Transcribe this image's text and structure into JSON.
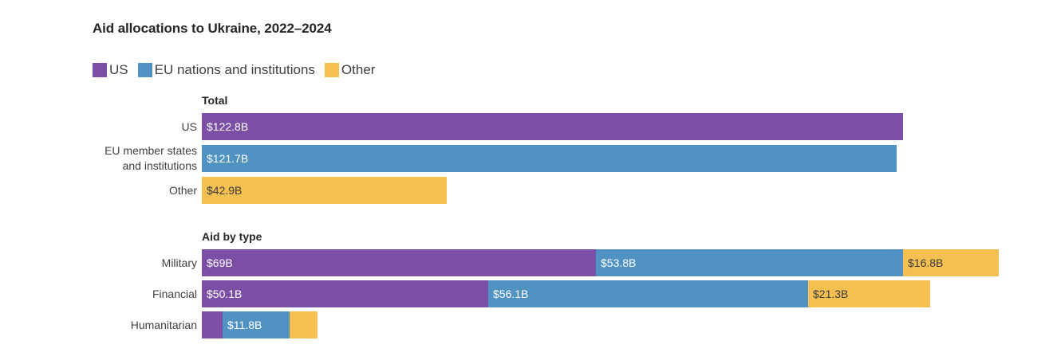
{
  "colors": {
    "US": "#7b4fa6",
    "EU": "#5093c3",
    "Other": "#f5c052",
    "label_light": "#ffffff",
    "label_dark": "#3a3a3a"
  },
  "chart_data": {
    "type": "bar",
    "title": "Aid allocations to Ukraine, 2022–2024",
    "xlabel": "",
    "ylabel": "",
    "unit": "USD billions",
    "xlim": [
      0,
      140
    ],
    "grid": false,
    "legend_position": "top-left",
    "legend": [
      {
        "key": "US",
        "label": "US"
      },
      {
        "key": "EU",
        "label": "EU nations and institutions"
      },
      {
        "key": "Other",
        "label": "Other"
      }
    ],
    "panels": [
      {
        "title": "Total",
        "stacked": false,
        "rows": [
          {
            "category": "US",
            "segments": [
              {
                "series": "US",
                "value": 122.8,
                "label": "$122.8B"
              }
            ]
          },
          {
            "category": "EU member states and institutions",
            "category_lines": [
              "EU member states",
              "and institutions"
            ],
            "segments": [
              {
                "series": "EU",
                "value": 121.7,
                "label": "$121.7B"
              }
            ]
          },
          {
            "category": "Other",
            "segments": [
              {
                "series": "Other",
                "value": 42.9,
                "label": "$42.9B"
              }
            ]
          }
        ]
      },
      {
        "title": "Aid by type",
        "stacked": true,
        "rows": [
          {
            "category": "Military",
            "segments": [
              {
                "series": "US",
                "value": 69,
                "label": "$69B"
              },
              {
                "series": "EU",
                "value": 53.8,
                "label": "$53.8B"
              },
              {
                "series": "Other",
                "value": 16.8,
                "label": "$16.8B"
              }
            ]
          },
          {
            "category": "Financial",
            "segments": [
              {
                "series": "US",
                "value": 50.1,
                "label": "$50.1B"
              },
              {
                "series": "EU",
                "value": 56.1,
                "label": "$56.1B"
              },
              {
                "series": "Other",
                "value": 21.3,
                "label": "$21.3B"
              }
            ]
          },
          {
            "category": "Humanitarian",
            "segments": [
              {
                "series": "US",
                "value": 3.6,
                "label": ""
              },
              {
                "series": "EU",
                "value": 11.8,
                "label": "$11.8B"
              },
              {
                "series": "Other",
                "value": 4.9,
                "label": ""
              }
            ]
          }
        ]
      }
    ]
  }
}
